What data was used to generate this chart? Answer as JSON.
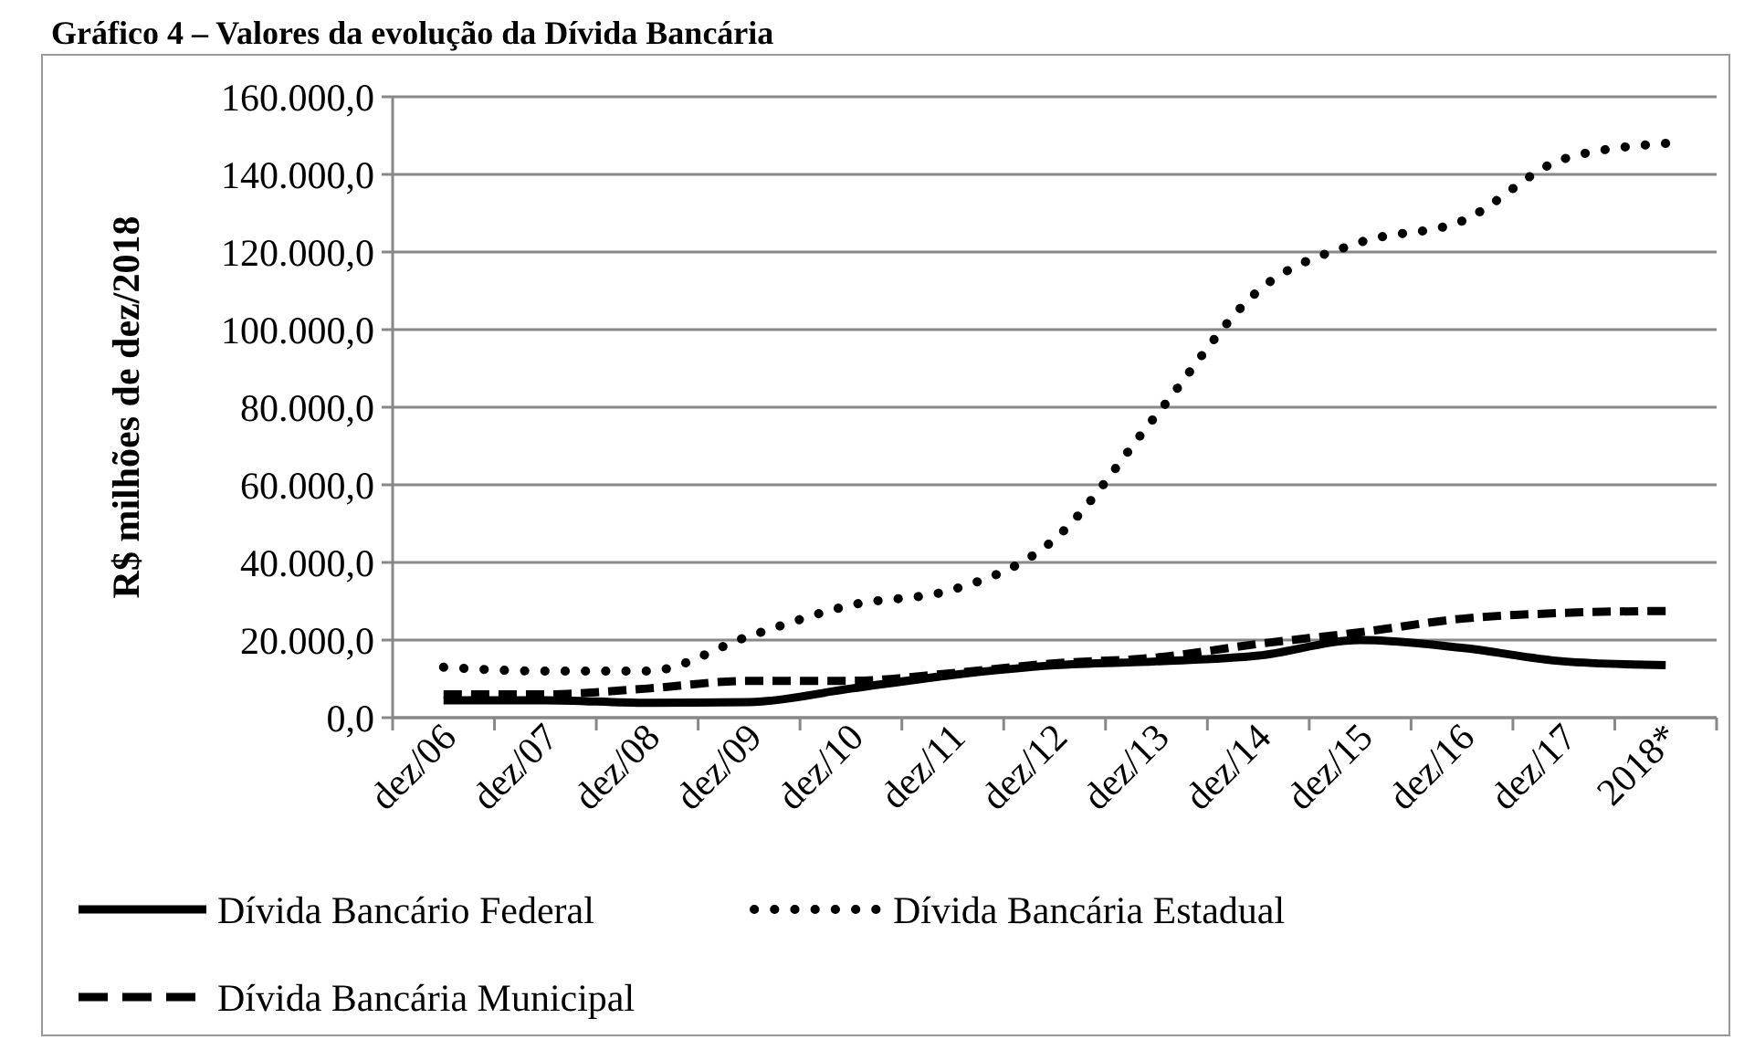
{
  "chart_data": {
    "type": "line",
    "title": "Gráfico 4 – Valores da evolução da Dívida Bancária",
    "ylabel": "R$ milhões de dez/2018",
    "categories": [
      "dez/06",
      "dez/07",
      "dez/08",
      "dez/09",
      "dez/10",
      "dez/11",
      "dez/12",
      "dez/13",
      "dez/14",
      "dez/15",
      "dez/16",
      "dez/17",
      "2018*"
    ],
    "series": [
      {
        "name": "Dívida Bancário Federal",
        "color": "#000000",
        "line_style": "solid",
        "values": [
          4500,
          4500,
          3800,
          4000,
          7500,
          11000,
          13500,
          14500,
          16000,
          20000,
          18000,
          14500,
          13500
        ]
      },
      {
        "name": "Dívida Bancária Estadual",
        "color": "#000000",
        "line_style": "dotted",
        "values": [
          13000,
          12000,
          12000,
          21000,
          29000,
          33000,
          46000,
          78000,
          110000,
          122500,
          128000,
          144000,
          148000
        ]
      },
      {
        "name": "Dívida Bancária Municipal",
        "color": "#000000",
        "line_style": "dashed",
        "values": [
          6000,
          6000,
          7500,
          9500,
          9500,
          11500,
          14000,
          15500,
          19000,
          22000,
          25500,
          27000,
          27500
        ]
      }
    ],
    "ylim": [
      0,
      160000
    ],
    "yticks": [
      {
        "value": 0,
        "label": "0,0"
      },
      {
        "value": 20000,
        "label": "20.000,0"
      },
      {
        "value": 40000,
        "label": "40.000,0"
      },
      {
        "value": 60000,
        "label": "60.000,0"
      },
      {
        "value": 80000,
        "label": "80.000,0"
      },
      {
        "value": 100000,
        "label": "100.000,0"
      },
      {
        "value": 120000,
        "label": "120.000,0"
      },
      {
        "value": 140000,
        "label": "140.000,0"
      },
      {
        "value": 160000,
        "label": "160.000,0"
      }
    ],
    "grid": "y",
    "legend": "bottom"
  }
}
